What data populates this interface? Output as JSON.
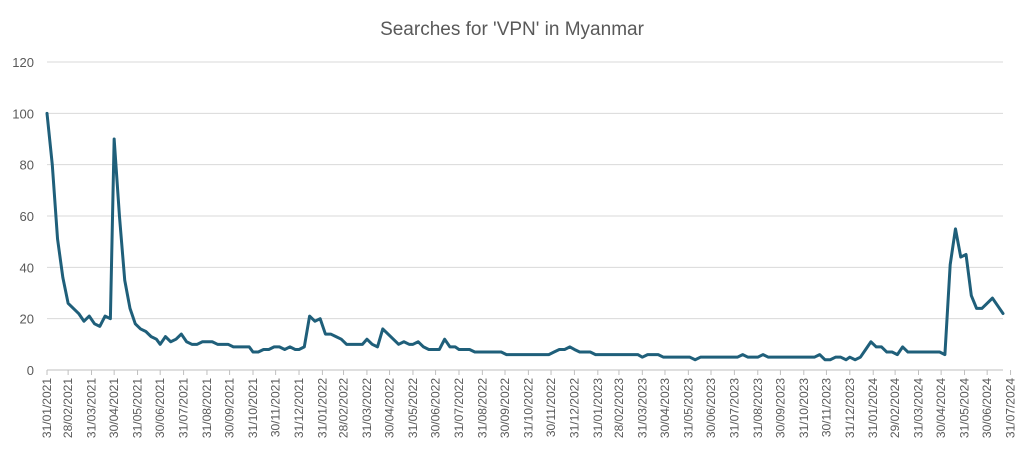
{
  "chart_data": {
    "type": "line",
    "title": "Searches for 'VPN' in Myanmar",
    "xlabel": "",
    "ylabel": "",
    "ylim": [
      0,
      120
    ],
    "yticks": [
      0,
      20,
      40,
      60,
      80,
      100,
      120
    ],
    "grid": true,
    "legend": "none",
    "x_tick_labels": [
      "31/01/2021",
      "28/02/2021",
      "31/03/2021",
      "30/04/2021",
      "31/05/2021",
      "30/06/2021",
      "31/07/2021",
      "31/08/2021",
      "30/09/2021",
      "31/10/2021",
      "30/11/2021",
      "31/12/2021",
      "31/01/2022",
      "28/02/2022",
      "31/03/2022",
      "30/04/2022",
      "31/05/2022",
      "30/06/2022",
      "31/07/2022",
      "31/08/2022",
      "30/09/2022",
      "31/10/2022",
      "30/11/2022",
      "31/12/2022",
      "31/01/2023",
      "28/02/2023",
      "31/03/2023",
      "30/04/2023",
      "31/05/2023",
      "30/06/2023",
      "31/07/2023",
      "31/08/2023",
      "30/09/2023",
      "31/10/2023",
      "30/11/2023",
      "31/12/2023",
      "31/01/2024",
      "29/02/2024",
      "31/03/2024",
      "30/04/2024",
      "31/05/2024",
      "30/06/2024",
      "31/07/2024"
    ],
    "series": [
      {
        "color": "#1f5f7a",
        "points": [
          [
            "31/01/2021",
            100
          ],
          [
            "07/02/2021",
            80
          ],
          [
            "14/02/2021",
            51
          ],
          [
            "21/02/2021",
            36
          ],
          [
            "28/02/2021",
            26
          ],
          [
            "07/03/2021",
            24
          ],
          [
            "14/03/2021",
            22
          ],
          [
            "21/03/2021",
            19
          ],
          [
            "28/03/2021",
            21
          ],
          [
            "04/04/2021",
            18
          ],
          [
            "11/04/2021",
            17
          ],
          [
            "18/04/2021",
            21
          ],
          [
            "25/04/2021",
            20
          ],
          [
            "30/04/2021",
            90
          ],
          [
            "07/05/2021",
            60
          ],
          [
            "14/05/2021",
            35
          ],
          [
            "21/05/2021",
            24
          ],
          [
            "28/05/2021",
            18
          ],
          [
            "04/06/2021",
            16
          ],
          [
            "11/06/2021",
            15
          ],
          [
            "18/06/2021",
            13
          ],
          [
            "25/06/2021",
            12
          ],
          [
            "30/06/2021",
            10
          ],
          [
            "07/07/2021",
            13
          ],
          [
            "14/07/2021",
            11
          ],
          [
            "21/07/2021",
            12
          ],
          [
            "28/07/2021",
            14
          ],
          [
            "04/08/2021",
            11
          ],
          [
            "11/08/2021",
            10
          ],
          [
            "18/08/2021",
            10
          ],
          [
            "25/08/2021",
            11
          ],
          [
            "31/08/2021",
            11
          ],
          [
            "07/09/2021",
            11
          ],
          [
            "14/09/2021",
            10
          ],
          [
            "21/09/2021",
            10
          ],
          [
            "28/09/2021",
            10
          ],
          [
            "05/10/2021",
            9
          ],
          [
            "12/10/2021",
            9
          ],
          [
            "19/10/2021",
            9
          ],
          [
            "26/10/2021",
            9
          ],
          [
            "31/10/2021",
            7
          ],
          [
            "07/11/2021",
            7
          ],
          [
            "14/11/2021",
            8
          ],
          [
            "21/11/2021",
            8
          ],
          [
            "28/11/2021",
            9
          ],
          [
            "05/12/2021",
            9
          ],
          [
            "12/12/2021",
            8
          ],
          [
            "19/12/2021",
            9
          ],
          [
            "26/12/2021",
            8
          ],
          [
            "31/12/2021",
            8
          ],
          [
            "07/01/2022",
            9
          ],
          [
            "14/01/2022",
            21
          ],
          [
            "21/01/2022",
            19
          ],
          [
            "28/01/2022",
            20
          ],
          [
            "04/02/2022",
            14
          ],
          [
            "11/02/2022",
            14
          ],
          [
            "18/02/2022",
            13
          ],
          [
            "25/02/2022",
            12
          ],
          [
            "04/03/2022",
            10
          ],
          [
            "11/03/2022",
            10
          ],
          [
            "18/03/2022",
            10
          ],
          [
            "25/03/2022",
            10
          ],
          [
            "31/03/2022",
            12
          ],
          [
            "07/04/2022",
            10
          ],
          [
            "14/04/2022",
            9
          ],
          [
            "21/04/2022",
            16
          ],
          [
            "28/04/2022",
            14
          ],
          [
            "05/05/2022",
            12
          ],
          [
            "12/05/2022",
            10
          ],
          [
            "19/05/2022",
            11
          ],
          [
            "26/05/2022",
            10
          ],
          [
            "31/05/2022",
            10
          ],
          [
            "07/06/2022",
            11
          ],
          [
            "14/06/2022",
            9
          ],
          [
            "21/06/2022",
            8
          ],
          [
            "28/06/2022",
            8
          ],
          [
            "05/07/2022",
            8
          ],
          [
            "12/07/2022",
            12
          ],
          [
            "19/07/2022",
            9
          ],
          [
            "26/07/2022",
            9
          ],
          [
            "31/07/2022",
            8
          ],
          [
            "07/08/2022",
            8
          ],
          [
            "14/08/2022",
            8
          ],
          [
            "21/08/2022",
            7
          ],
          [
            "28/08/2022",
            7
          ],
          [
            "04/09/2022",
            7
          ],
          [
            "11/09/2022",
            7
          ],
          [
            "18/09/2022",
            7
          ],
          [
            "25/09/2022",
            7
          ],
          [
            "02/10/2022",
            6
          ],
          [
            "09/10/2022",
            6
          ],
          [
            "16/10/2022",
            6
          ],
          [
            "23/10/2022",
            6
          ],
          [
            "30/10/2022",
            6
          ],
          [
            "06/11/2022",
            6
          ],
          [
            "13/11/2022",
            6
          ],
          [
            "20/11/2022",
            6
          ],
          [
            "27/11/2022",
            6
          ],
          [
            "04/12/2022",
            7
          ],
          [
            "11/12/2022",
            8
          ],
          [
            "18/12/2022",
            8
          ],
          [
            "25/12/2022",
            9
          ],
          [
            "31/12/2022",
            8
          ],
          [
            "07/01/2023",
            7
          ],
          [
            "14/01/2023",
            7
          ],
          [
            "21/01/2023",
            7
          ],
          [
            "28/01/2023",
            6
          ],
          [
            "04/02/2023",
            6
          ],
          [
            "11/02/2023",
            6
          ],
          [
            "18/02/2023",
            6
          ],
          [
            "25/02/2023",
            6
          ],
          [
            "04/03/2023",
            6
          ],
          [
            "11/03/2023",
            6
          ],
          [
            "18/03/2023",
            6
          ],
          [
            "25/03/2023",
            6
          ],
          [
            "31/03/2023",
            5
          ],
          [
            "07/04/2023",
            6
          ],
          [
            "14/04/2023",
            6
          ],
          [
            "21/04/2023",
            6
          ],
          [
            "28/04/2023",
            5
          ],
          [
            "05/05/2023",
            5
          ],
          [
            "12/05/2023",
            5
          ],
          [
            "19/05/2023",
            5
          ],
          [
            "26/05/2023",
            5
          ],
          [
            "02/06/2023",
            5
          ],
          [
            "09/06/2023",
            4
          ],
          [
            "16/06/2023",
            5
          ],
          [
            "23/06/2023",
            5
          ],
          [
            "30/06/2023",
            5
          ],
          [
            "07/07/2023",
            5
          ],
          [
            "14/07/2023",
            5
          ],
          [
            "21/07/2023",
            5
          ],
          [
            "28/07/2023",
            5
          ],
          [
            "04/08/2023",
            5
          ],
          [
            "11/08/2023",
            6
          ],
          [
            "18/08/2023",
            5
          ],
          [
            "25/08/2023",
            5
          ],
          [
            "31/08/2023",
            5
          ],
          [
            "07/09/2023",
            6
          ],
          [
            "14/09/2023",
            5
          ],
          [
            "21/09/2023",
            5
          ],
          [
            "28/09/2023",
            5
          ],
          [
            "05/10/2023",
            5
          ],
          [
            "12/10/2023",
            5
          ],
          [
            "19/10/2023",
            5
          ],
          [
            "26/10/2023",
            5
          ],
          [
            "31/10/2023",
            5
          ],
          [
            "07/11/2023",
            5
          ],
          [
            "14/11/2023",
            5
          ],
          [
            "21/11/2023",
            6
          ],
          [
            "28/11/2023",
            4
          ],
          [
            "05/12/2023",
            4
          ],
          [
            "12/12/2023",
            5
          ],
          [
            "19/12/2023",
            5
          ],
          [
            "26/12/2023",
            4
          ],
          [
            "31/12/2023",
            5
          ],
          [
            "07/01/2024",
            4
          ],
          [
            "14/01/2024",
            5
          ],
          [
            "21/01/2024",
            8
          ],
          [
            "28/01/2024",
            11
          ],
          [
            "04/02/2024",
            9
          ],
          [
            "11/02/2024",
            9
          ],
          [
            "18/02/2024",
            7
          ],
          [
            "25/02/2024",
            7
          ],
          [
            "03/03/2024",
            6
          ],
          [
            "10/03/2024",
            9
          ],
          [
            "17/03/2024",
            7
          ],
          [
            "24/03/2024",
            7
          ],
          [
            "31/03/2024",
            7
          ],
          [
            "07/04/2024",
            7
          ],
          [
            "14/04/2024",
            7
          ],
          [
            "21/04/2024",
            7
          ],
          [
            "28/04/2024",
            7
          ],
          [
            "05/05/2024",
            6
          ],
          [
            "12/05/2024",
            41
          ],
          [
            "19/05/2024",
            55
          ],
          [
            "26/05/2024",
            44
          ],
          [
            "02/06/2024",
            45
          ],
          [
            "09/06/2024",
            29
          ],
          [
            "16/06/2024",
            24
          ],
          [
            "23/06/2024",
            24
          ],
          [
            "30/06/2024",
            26
          ],
          [
            "07/07/2024",
            28
          ],
          [
            "14/07/2024",
            25
          ],
          [
            "21/07/2024",
            22
          ]
        ]
      }
    ]
  }
}
